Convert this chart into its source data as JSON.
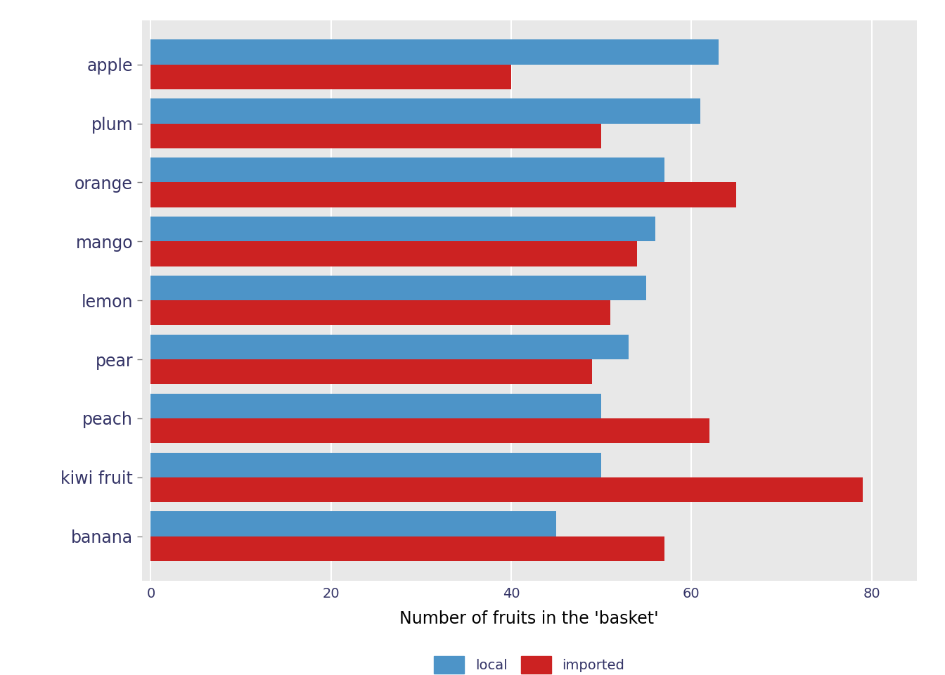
{
  "fruits": [
    "banana",
    "kiwi fruit",
    "peach",
    "pear",
    "lemon",
    "mango",
    "orange",
    "plum",
    "apple"
  ],
  "local": [
    45,
    50,
    50,
    53,
    55,
    56,
    57,
    61,
    63
  ],
  "imported": [
    57,
    79,
    62,
    49,
    51,
    54,
    65,
    50,
    40
  ],
  "local_color": "#4d94c8",
  "imported_color": "#cc2222",
  "xlabel": "Number of fruits in the 'basket'",
  "bar_height": 0.42,
  "xlim": [
    -1,
    85
  ],
  "xticks": [
    0,
    20,
    40,
    60,
    80
  ],
  "bg_color": "#e8e8e8",
  "grid_color": "#ffffff",
  "xlabel_fontsize": 17,
  "tick_fontsize": 14,
  "label_fontsize": 17,
  "legend_fontsize": 14,
  "text_color": "#333366"
}
